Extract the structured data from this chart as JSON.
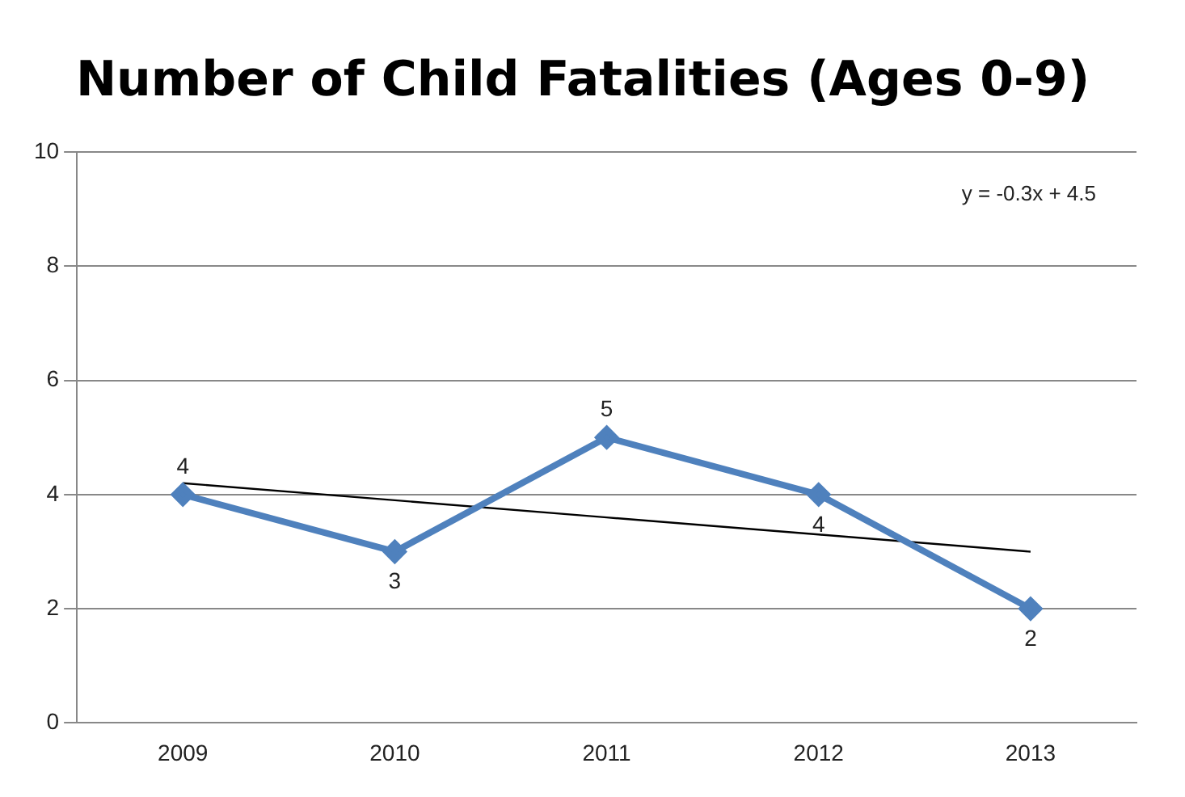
{
  "chart_data": {
    "type": "line",
    "title": "Number of Child Fatalities (Ages 0-9)",
    "categories": [
      "2009",
      "2010",
      "2011",
      "2012",
      "2013"
    ],
    "series": [
      {
        "color": "#4f81bd",
        "values": [
          4,
          3,
          5,
          4,
          2
        ],
        "marker": "diamond"
      },
      {
        "color": "#000000",
        "values": [
          4.2,
          3.9,
          3.6,
          3.3,
          3.0
        ],
        "marker": "none",
        "data_labels": false
      }
    ],
    "data_labels": true,
    "annotations": [
      "y = -0.3x + 4.5"
    ],
    "ylim": [
      0,
      10
    ],
    "yticks": [
      0,
      2,
      4,
      6,
      8,
      10
    ],
    "grid": "y",
    "legend": false
  }
}
